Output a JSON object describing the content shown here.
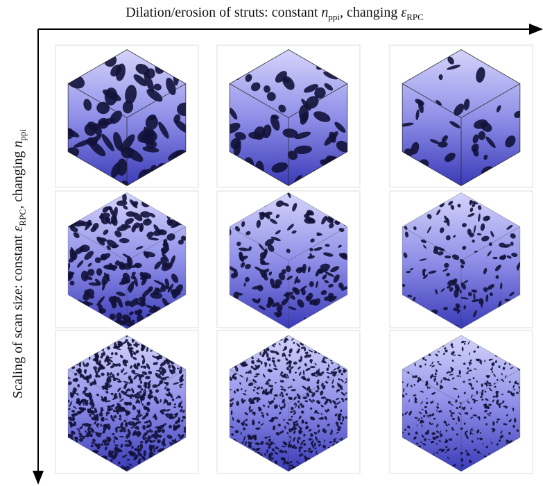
{
  "top_label": {
    "parts": [
      "Dilation/erosion of struts: constant ",
      "n",
      "ppi",
      ", changing ",
      "ε",
      "RPC"
    ]
  },
  "side_label": {
    "parts": [
      "Scaling of scan size: constant ",
      "ε",
      "RPC",
      ", changing ",
      "n",
      "ppi"
    ]
  }
}
